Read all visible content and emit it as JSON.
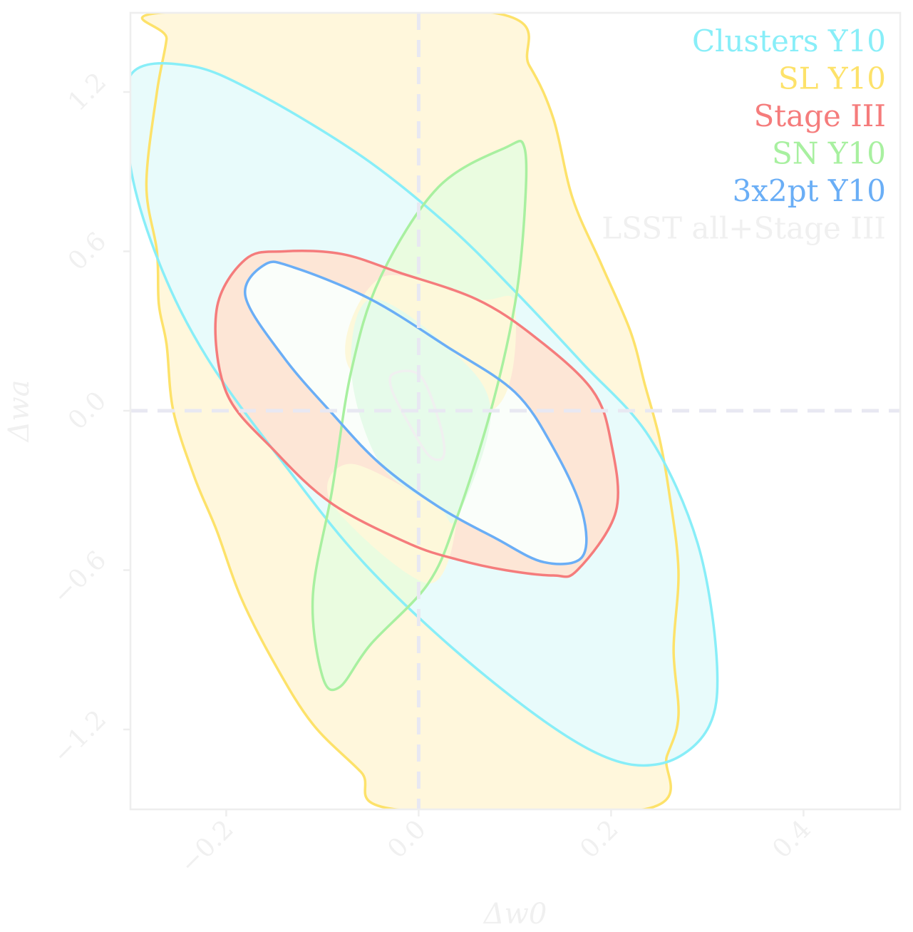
{
  "chart_data": {
    "type": "contour",
    "xlabel": "Δw0",
    "ylabel": "Δwa",
    "xlim": [
      -0.3,
      0.5
    ],
    "ylim": [
      -1.5,
      1.5
    ],
    "x_ticks": [
      -0.2,
      0.0,
      0.2,
      0.4
    ],
    "x_tick_labels": [
      "−0.2",
      "0.0",
      "0.2",
      "0.4"
    ],
    "y_ticks": [
      -1.2,
      -0.6,
      0.0,
      0.6,
      1.2
    ],
    "y_tick_labels": [
      "−1.2",
      "−0.6",
      "0.0",
      "0.6",
      "1.2"
    ],
    "reference_lines": {
      "x": 0.0,
      "y": 0.0
    },
    "legend_position": "top-right",
    "series": [
      {
        "name": "SL Y10",
        "color": "#fde26a",
        "fill": "#fff7dc",
        "contour": [
          [
            -0.263,
            1.5
          ],
          [
            -0.262,
            1.4
          ],
          [
            -0.272,
            1.2
          ],
          [
            -0.283,
            0.85
          ],
          [
            -0.272,
            0.6
          ],
          [
            -0.27,
            0.4
          ],
          [
            -0.262,
            0.25
          ],
          [
            -0.255,
            0.0
          ],
          [
            -0.233,
            -0.25
          ],
          [
            -0.21,
            -0.45
          ],
          [
            -0.185,
            -0.7
          ],
          [
            -0.15,
            -0.95
          ],
          [
            -0.11,
            -1.18
          ],
          [
            -0.06,
            -1.36
          ],
          [
            -0.025,
            -1.5
          ],
          [
            0.235,
            -1.5
          ],
          [
            0.258,
            -1.3
          ],
          [
            0.27,
            -1.15
          ],
          [
            0.265,
            -0.9
          ],
          [
            0.27,
            -0.6
          ],
          [
            0.26,
            -0.3
          ],
          [
            0.25,
            -0.1
          ],
          [
            0.235,
            0.1
          ],
          [
            0.22,
            0.3
          ],
          [
            0.19,
            0.55
          ],
          [
            0.16,
            0.8
          ],
          [
            0.14,
            1.1
          ],
          [
            0.115,
            1.3
          ],
          [
            0.075,
            1.5
          ]
        ]
      },
      {
        "name": "Clusters Y10",
        "color": "#88eef8",
        "fill": "#e8fbfb",
        "contour": [
          [
            -0.3,
            1.26
          ],
          [
            -0.24,
            1.3
          ],
          [
            -0.17,
            1.2
          ],
          [
            -0.06,
            0.96
          ],
          [
            0.03,
            0.7
          ],
          [
            0.1,
            0.45
          ],
          [
            0.17,
            0.18
          ],
          [
            0.24,
            -0.1
          ],
          [
            0.29,
            -0.5
          ],
          [
            0.31,
            -0.95
          ],
          [
            0.3,
            -1.2
          ],
          [
            0.25,
            -1.33
          ],
          [
            0.18,
            -1.28
          ],
          [
            0.07,
            -1.0
          ],
          [
            -0.05,
            -0.6
          ],
          [
            -0.14,
            -0.2
          ],
          [
            -0.22,
            0.2
          ],
          [
            -0.27,
            0.56
          ],
          [
            -0.3,
            0.93
          ]
        ]
      },
      {
        "name": "SN Y10",
        "color": "#a8f0a0",
        "fill": "#eafce0",
        "contour": [
          [
            0.02,
            0.84
          ],
          [
            0.09,
            0.99
          ],
          [
            0.11,
            0.99
          ],
          [
            0.11,
            0.74
          ],
          [
            0.1,
            0.4
          ],
          [
            0.075,
            0.0
          ],
          [
            0.04,
            -0.4
          ],
          [
            0.01,
            -0.65
          ],
          [
            -0.05,
            -0.88
          ],
          [
            -0.082,
            -1.04
          ],
          [
            -0.1,
            -1.0
          ],
          [
            -0.11,
            -0.7
          ],
          [
            -0.09,
            -0.3
          ],
          [
            -0.07,
            0.15
          ],
          [
            -0.04,
            0.5
          ]
        ]
      },
      {
        "name": "Stage III",
        "color": "#f57c7c",
        "fill": "#fde6d6",
        "contour": [
          [
            -0.21,
            0.38
          ],
          [
            -0.18,
            0.57
          ],
          [
            -0.14,
            0.6
          ],
          [
            -0.08,
            0.59
          ],
          [
            -0.02,
            0.52
          ],
          [
            0.06,
            0.42
          ],
          [
            0.12,
            0.28
          ],
          [
            0.18,
            0.08
          ],
          [
            0.2,
            -0.12
          ],
          [
            0.205,
            -0.38
          ],
          [
            0.165,
            -0.6
          ],
          [
            0.14,
            -0.62
          ],
          [
            0.09,
            -0.6
          ],
          [
            0.04,
            -0.56
          ],
          [
            -0.01,
            -0.5
          ],
          [
            -0.09,
            -0.35
          ],
          [
            -0.15,
            -0.15
          ],
          [
            -0.2,
            0.07
          ]
        ]
      },
      {
        "name": "3x2pt Y10",
        "color": "#6aaef6",
        "fill": "#fafefa",
        "contour": [
          [
            -0.16,
            0.55
          ],
          [
            -0.13,
            0.54
          ],
          [
            -0.05,
            0.42
          ],
          [
            0.03,
            0.24
          ],
          [
            0.1,
            0.07
          ],
          [
            0.14,
            -0.14
          ],
          [
            0.17,
            -0.38
          ],
          [
            0.17,
            -0.55
          ],
          [
            0.13,
            -0.57
          ],
          [
            0.08,
            -0.48
          ],
          [
            0.02,
            -0.36
          ],
          [
            -0.04,
            -0.2
          ],
          [
            -0.09,
            -0.01
          ],
          [
            -0.14,
            0.2
          ],
          [
            -0.18,
            0.43
          ]
        ]
      },
      {
        "name": "LSST all+Stage III",
        "color": "#f0f0f0",
        "fill": "#e8fbee",
        "contour": [
          [
            -0.026,
            0.14
          ],
          [
            0.002,
            0.13
          ],
          [
            0.022,
            -0.05
          ],
          [
            0.026,
            -0.17
          ],
          [
            0.011,
            -0.17
          ],
          [
            -0.01,
            -0.05
          ],
          [
            -0.028,
            0.08
          ]
        ]
      }
    ],
    "region_fills": [
      {
        "note": "SN ∩ Stage III",
        "fill": "#fdf8da",
        "regions": [
          [
            [
              -0.04,
              0.5
            ],
            [
              0.06,
              0.42
            ],
            [
              0.1,
              0.4
            ],
            [
              0.075,
              0.0
            ],
            [
              -0.07,
              0.15
            ]
          ],
          [
            [
              0.04,
              -0.4
            ],
            [
              0.01,
              -0.65
            ],
            [
              -0.09,
              -0.35
            ],
            [
              -0.07,
              -0.2
            ],
            [
              0.02,
              -0.36
            ]
          ]
        ]
      },
      {
        "note": "SN ∩ 3x2pt",
        "fill": "#e6fbea",
        "regions": [
          [
            [
              -0.05,
              0.42
            ],
            [
              0.03,
              0.24
            ],
            [
              0.075,
              0.0
            ],
            [
              0.04,
              -0.4
            ],
            [
              0.02,
              -0.36
            ],
            [
              -0.04,
              -0.2
            ],
            [
              -0.07,
              0.15
            ]
          ]
        ]
      }
    ]
  }
}
